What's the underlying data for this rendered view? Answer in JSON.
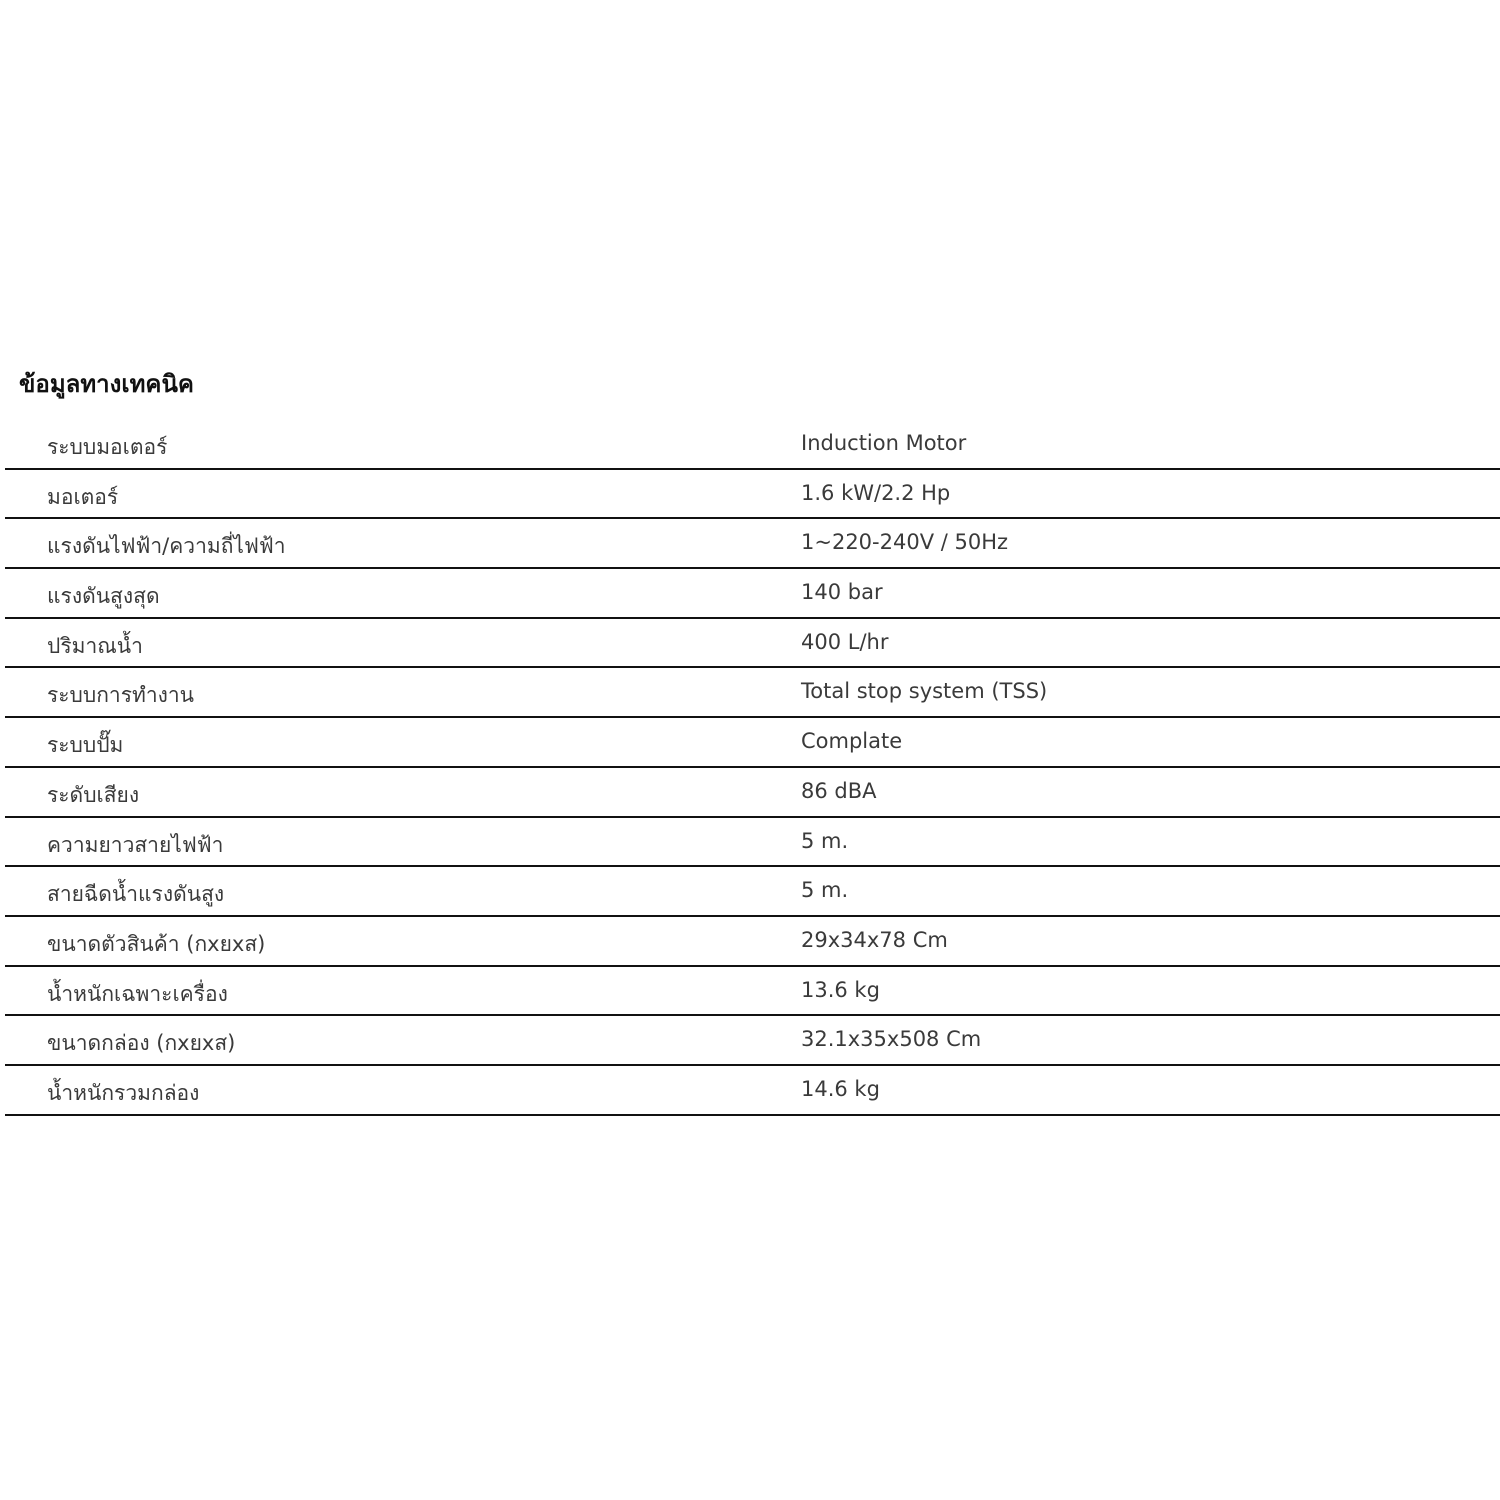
{
  "title": "ข้อมูลทางเทคนิค",
  "rows": [
    {
      "label": "ระบบมอเตอร์",
      "value": "Induction Motor"
    },
    {
      "label": "มอเตอร์",
      "value": "1.6 kW/2.2 Hp"
    },
    {
      "label": "แรงดันไฟฟ้า/ความถี่ไฟฟ้า",
      "value": "1~220-240V / 50Hz"
    },
    {
      "label": "แรงดันสูงสุด",
      "value": "140 bar"
    },
    {
      "label": "ปริมาณน้ำ",
      "value": "400 L/hr"
    },
    {
      "label": "ระบบการทำงาน",
      "value": "Total stop system (TSS)"
    },
    {
      "label": "ระบบปั๊ม",
      "value": "Complate"
    },
    {
      "label": "ระดับเสียง",
      "value": "86 dBA"
    },
    {
      "label": "ความยาวสายไฟฟ้า",
      "value": "5 m."
    },
    {
      "label": "สายฉีดน้ำแรงดันสูง",
      "value": "5 m."
    },
    {
      "label": "ขนาดตัวสินค้า (กxยxส)",
      "value": "29x34x78 Cm"
    },
    {
      "label": "น้ำหนักเฉพาะเครื่อง",
      "value": "13.6 kg"
    },
    {
      "label": "ขนาดกล่อง (กxยxส)",
      "value": "32.1x35x508 Cm"
    },
    {
      "label": "น้ำหนักรวมกล่อง",
      "value": "14.6 kg"
    }
  ]
}
